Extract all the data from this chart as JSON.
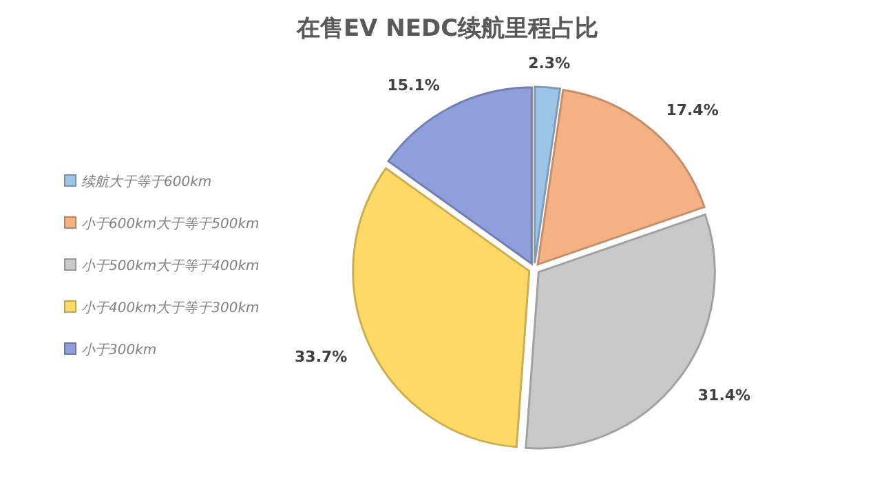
{
  "chart_data": {
    "type": "pie",
    "title": "在售EV NEDC续航里程占比",
    "categories": [
      "续航大于等于600km",
      "小于600km大于等于500km",
      "小于500km大于等于400km",
      "小于400km大于等于300km",
      "小于300km"
    ],
    "values": [
      2.3,
      17.4,
      31.4,
      33.7,
      15.1
    ],
    "colors": [
      "#9dc3e6",
      "#f4b183",
      "#c9c9c9",
      "#ffd966",
      "#8f9fdc"
    ],
    "value_labels": [
      "2.3%",
      "17.4%",
      "31.4%",
      "33.7%",
      "15.1%"
    ],
    "legend": "left"
  }
}
